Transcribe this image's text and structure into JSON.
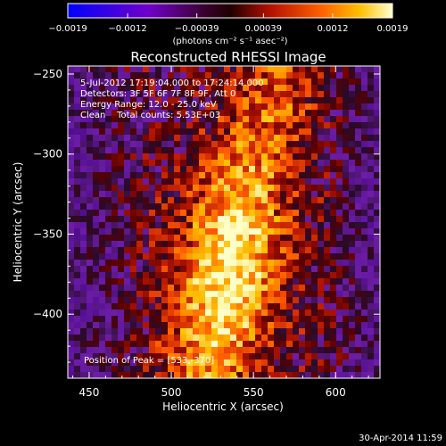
{
  "chart_data": {
    "type": "heatmap",
    "title": "Reconstructed RHESSI Image",
    "xlabel": "Heliocentric X (arcsec)",
    "ylabel": "Heliocentric Y (arcsec)",
    "xlim": [
      437,
      627
    ],
    "ylim": [
      -440,
      -245
    ],
    "x_ticks": [
      450,
      500,
      550,
      600
    ],
    "y_ticks": [
      -250,
      -300,
      -350,
      -400
    ],
    "x_tick_labels": [
      "450",
      "500",
      "550",
      "600"
    ],
    "y_tick_labels": [
      "−250",
      "−300",
      "−350",
      "−400"
    ],
    "colorbar": {
      "range": [
        -0.0019,
        0.0019
      ],
      "ticks": [
        -0.0019,
        -0.0012,
        -0.00039,
        0.00039,
        0.0012,
        0.0019
      ],
      "tick_labels": [
        "−0.0019",
        "−0.0012",
        "−0.00039",
        "0.00039",
        "0.0012",
        "0.0019"
      ],
      "unit_label": "(photons cm⁻² s⁻¹ asec⁻²)"
    },
    "annotations": {
      "time": "5-Jul-2012 17:19:04.000 to 17:24:14.000",
      "detectors": "Detectors: 3F 5F 6F 7F 8F 9F, Att 0",
      "energy": "Energy Range: 12.0 - 25.0 keV",
      "method": "Clean    Total counts: 5.53E+03",
      "peak": "Position of Peak = [533,-370]"
    },
    "peak": {
      "x": 533,
      "y": -370
    },
    "footer_date": "30-Apr-2014 11:59"
  }
}
